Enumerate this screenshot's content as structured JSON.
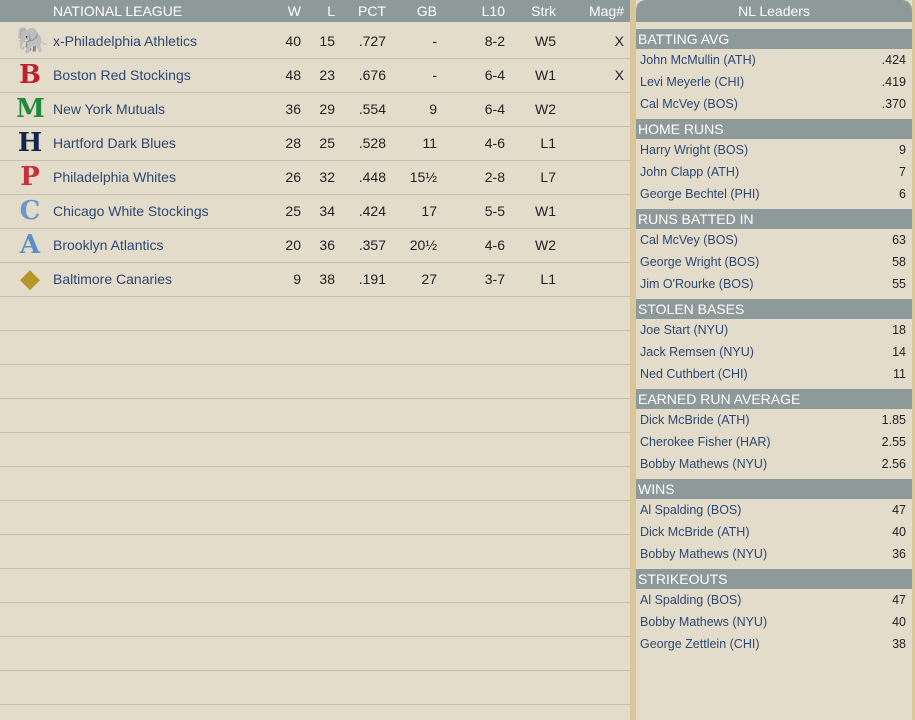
{
  "standings": {
    "header": {
      "league": "NATIONAL LEAGUE",
      "w": "W",
      "l": "L",
      "pct": "PCT",
      "gb": "GB",
      "l10": "L10",
      "strk": "Strk",
      "mag": "Mag#"
    },
    "teams": [
      {
        "name": "x-Philadelphia Athletics",
        "w": "40",
        "l": "15",
        "pct": ".727",
        "gb": "-",
        "l10": "8-2",
        "strk": "W5",
        "mag": "X",
        "logo": "elephant-icon",
        "logo_glyph": "🐘",
        "color": "#2a2aa8"
      },
      {
        "name": "Boston Red Stockings",
        "w": "48",
        "l": "23",
        "pct": ".676",
        "gb": "-",
        "l10": "6-4",
        "strk": "W1",
        "mag": "X",
        "logo": "gothic-b-icon",
        "logo_glyph": "B",
        "color": "#c0202c"
      },
      {
        "name": "New York Mutuals",
        "w": "36",
        "l": "29",
        "pct": ".554",
        "gb": "9",
        "l10": "6-4",
        "strk": "W2",
        "mag": "",
        "logo": "gothic-m-icon",
        "logo_glyph": "M",
        "color": "#1f8a3a"
      },
      {
        "name": "Hartford Dark Blues",
        "w": "28",
        "l": "25",
        "pct": ".528",
        "gb": "11",
        "l10": "4-6",
        "strk": "L1",
        "mag": "",
        "logo": "letter-h-icon",
        "logo_glyph": "H",
        "color": "#16264a"
      },
      {
        "name": "Philadelphia Whites",
        "w": "26",
        "l": "32",
        "pct": ".448",
        "gb": "15½",
        "l10": "2-8",
        "strk": "L7",
        "mag": "",
        "logo": "letter-p-icon",
        "logo_glyph": "P",
        "color": "#c8303a"
      },
      {
        "name": "Chicago White Stockings",
        "w": "25",
        "l": "34",
        "pct": ".424",
        "gb": "17",
        "l10": "5-5",
        "strk": "W1",
        "mag": "",
        "logo": "letter-c-icon",
        "logo_glyph": "C",
        "color": "#6a98c8"
      },
      {
        "name": "Brooklyn Atlantics",
        "w": "20",
        "l": "36",
        "pct": ".357",
        "gb": "20½",
        "l10": "4-6",
        "strk": "W2",
        "mag": "",
        "logo": "letter-a-icon",
        "logo_glyph": "A",
        "color": "#5b8fc6"
      },
      {
        "name": "Baltimore Canaries",
        "w": "9",
        "l": "38",
        "pct": ".191",
        "gb": "27",
        "l10": "3-7",
        "strk": "L1",
        "mag": "",
        "logo": "shield-icon",
        "logo_glyph": "◆",
        "color": "#b8962a"
      }
    ]
  },
  "leaders": {
    "title": "NL Leaders",
    "sections": [
      {
        "title": "BATTING AVG",
        "rows": [
          [
            "John McMullin (ATH)",
            ".424"
          ],
          [
            "Levi Meyerle (CHI)",
            ".419"
          ],
          [
            "Cal McVey (BOS)",
            ".370"
          ]
        ]
      },
      {
        "title": "HOME RUNS",
        "rows": [
          [
            "Harry Wright (BOS)",
            "9"
          ],
          [
            "John Clapp (ATH)",
            "7"
          ],
          [
            "George Bechtel (PHI)",
            "6"
          ]
        ]
      },
      {
        "title": "RUNS BATTED IN",
        "rows": [
          [
            "Cal McVey (BOS)",
            "63"
          ],
          [
            "George Wright (BOS)",
            "58"
          ],
          [
            "Jim O'Rourke (BOS)",
            "55"
          ]
        ]
      },
      {
        "title": "STOLEN BASES",
        "rows": [
          [
            "Joe Start (NYU)",
            "18"
          ],
          [
            "Jack Remsen (NYU)",
            "14"
          ],
          [
            "Ned Cuthbert (CHI)",
            "11"
          ]
        ]
      },
      {
        "title": "EARNED RUN AVERAGE",
        "rows": [
          [
            "Dick McBride (ATH)",
            "1.85"
          ],
          [
            "Cherokee Fisher (HAR)",
            "2.55"
          ],
          [
            "Bobby Mathews (NYU)",
            "2.56"
          ]
        ]
      },
      {
        "title": "WINS",
        "rows": [
          [
            "Al Spalding (BOS)",
            "47"
          ],
          [
            "Dick McBride (ATH)",
            "40"
          ],
          [
            "Bobby Mathews (NYU)",
            "36"
          ]
        ]
      },
      {
        "title": "STRIKEOUTS",
        "rows": [
          [
            "Al Spalding (BOS)",
            "47"
          ],
          [
            "Bobby Mathews (NYU)",
            "40"
          ],
          [
            "George Zettlein (CHI)",
            "38"
          ]
        ]
      }
    ]
  }
}
